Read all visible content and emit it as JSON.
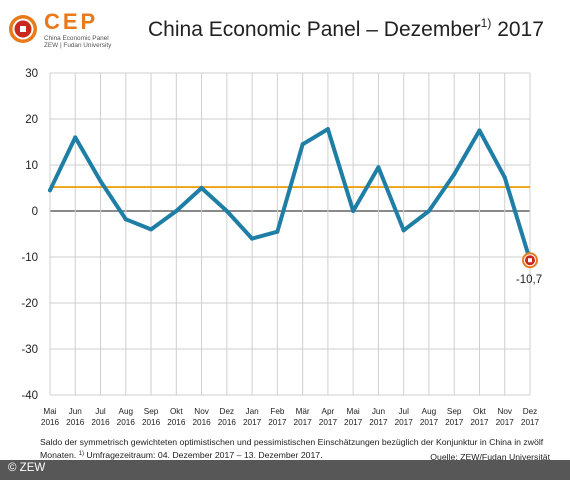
{
  "logo": {
    "name": "CEP",
    "subtitle_line1": "China Economic Panel",
    "subtitle_line2": "ZEW | Fudan University"
  },
  "header": {
    "title_main": "China Economic Panel – Dezember",
    "title_footnote": "1)",
    "title_year": "2017"
  },
  "chart_data": {
    "type": "line",
    "categories": [
      [
        "Mai",
        "2016"
      ],
      [
        "Jun",
        "2016"
      ],
      [
        "Jul",
        "2016"
      ],
      [
        "Aug",
        "2016"
      ],
      [
        "Sep",
        "2016"
      ],
      [
        "Okt",
        "2016"
      ],
      [
        "Nov",
        "2016"
      ],
      [
        "Dez",
        "2016"
      ],
      [
        "Jan",
        "2017"
      ],
      [
        "Feb",
        "2017"
      ],
      [
        "Mär",
        "2017"
      ],
      [
        "Apr",
        "2017"
      ],
      [
        "Mai",
        "2017"
      ],
      [
        "Jun",
        "2017"
      ],
      [
        "Jul",
        "2017"
      ],
      [
        "Aug",
        "2017"
      ],
      [
        "Sep",
        "2017"
      ],
      [
        "Okt",
        "2017"
      ],
      [
        "Nov",
        "2017"
      ],
      [
        "Dez",
        "2017"
      ]
    ],
    "series": [
      {
        "values": [
          4.5,
          16.0,
          6.5,
          -1.8,
          -4.0,
          0.0,
          5.0,
          0.0,
          -6.0,
          -4.5,
          14.5,
          17.8,
          0.0,
          9.5,
          -4.2,
          0.0,
          8.0,
          17.5,
          7.3,
          -10.7
        ],
        "color": "#1f7ea6"
      }
    ],
    "reference_line": {
      "value": 5.2,
      "color": "#f0a010"
    },
    "annotation": {
      "label": "-10,7",
      "index": 19
    },
    "ylim": [
      -40,
      30
    ],
    "yticks": [
      "30",
      "20",
      "10",
      "0",
      "-10",
      "-20",
      "-30",
      "-40"
    ],
    "ytick_values": [
      30,
      20,
      10,
      0,
      -10,
      -20,
      -30,
      -40
    ],
    "grid": true,
    "gridline_color": "#cfcfcf",
    "zero_line_color": "#444444",
    "marker_color": "#c8281e"
  },
  "caption": {
    "line1": "Saldo der symmetrisch gewichteten optimistischen und pessimistischen Einschätzungen bezüglich der Konjunktur in China in zwölf",
    "line2a": "Monaten.",
    "footnote_marker": "1)",
    "line2b": "Umfragezeitraum: 04. Dezember 2017 – 13. Dezember 2017.",
    "source": "Quelle: ZEW/Fudan Universität"
  },
  "footer": {
    "copyright": "© ZEW"
  }
}
